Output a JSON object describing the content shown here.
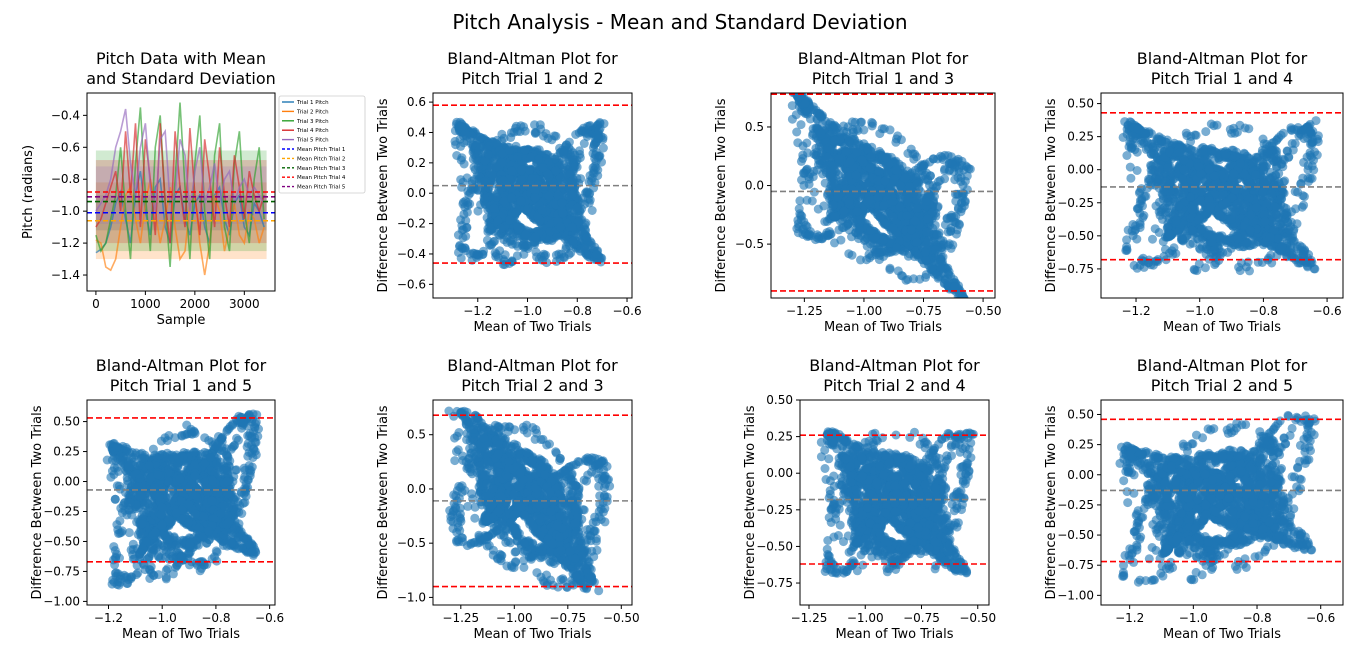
{
  "figure": {
    "title": "Pitch Analysis - Mean and Standard Deviation"
  },
  "colors": {
    "trial1": "#1f77b4",
    "trial2": "#ff7f0e",
    "trial3": "#2ca02c",
    "trial4": "#d62728",
    "trial5": "#9467bd",
    "mean1": "#0000ff",
    "mean2": "#ffa500",
    "mean3": "#006400",
    "mean4": "#ff0000",
    "mean5": "#800080",
    "scatter": "#1f77b4",
    "limit": "#ff0000",
    "meanDiff": "#808080"
  },
  "chart_data": [
    {
      "type": "line",
      "title": "Pitch Data with Mean\nand Standard Deviation",
      "xlabel": "Sample",
      "ylabel": "Pitch (radians)",
      "xlim": [
        -180,
        3620
      ],
      "ylim": [
        -1.5,
        -0.26
      ],
      "xticks": [
        0,
        1000,
        2000,
        3000
      ],
      "yticks": [
        -1.4,
        -1.2,
        -1.0,
        -0.8,
        -0.6,
        -0.4
      ],
      "grid": false,
      "legend_position": "outside-right",
      "legend": [
        "Trial 1 Pitch",
        "Trial 2 Pitch",
        "Trial 3 Pitch",
        "Trial 4 Pitch",
        "Trial 5 Pitch",
        "Mean Pitch Trial 1",
        "Mean Pitch Trial 2",
        "Mean Pitch Trial 3",
        "Mean Pitch Trial 4",
        "Mean Pitch Trial 5"
      ],
      "series": [
        {
          "name": "Trial 1 Pitch",
          "x": [
            0,
            100,
            200,
            300,
            400,
            500,
            600,
            700,
            800,
            900,
            1000,
            1100,
            1200,
            1300,
            1400,
            1500,
            1600,
            1700,
            1800,
            1900,
            2000,
            2100,
            2200,
            2300,
            2400,
            2500,
            2600,
            2700,
            2800,
            2900,
            3000,
            3100,
            3200,
            3300,
            3400
          ],
          "y": [
            -1.26,
            -1.24,
            -1.2,
            -1.1,
            -0.95,
            -0.88,
            -1.05,
            -1.2,
            -0.9,
            -0.75,
            -1.0,
            -1.15,
            -0.85,
            -0.8,
            -1.1,
            -1.2,
            -0.9,
            -0.85,
            -1.05,
            -1.15,
            -0.95,
            -0.9,
            -1.1,
            -1.2,
            -0.9,
            -0.85,
            -1.05,
            -1.15,
            -0.95,
            -0.9,
            -1.1,
            -1.15,
            -0.95,
            -1.0,
            -1.1
          ]
        },
        {
          "name": "Trial 2 Pitch",
          "x": [
            0,
            100,
            200,
            300,
            400,
            500,
            600,
            700,
            800,
            900,
            1000,
            1100,
            1200,
            1300,
            1400,
            1500,
            1600,
            1700,
            1800,
            1900,
            2000,
            2100,
            2200,
            2300,
            2400,
            2500,
            2600,
            2700,
            2800,
            2900,
            3000,
            3100,
            3200,
            3300,
            3400
          ],
          "y": [
            -1.18,
            -1.2,
            -1.35,
            -1.37,
            -1.3,
            -1.1,
            -0.9,
            -0.85,
            -1.05,
            -1.2,
            -0.95,
            -0.8,
            -1.0,
            -1.2,
            -1.05,
            -0.85,
            -1.1,
            -1.3,
            -1.25,
            -0.95,
            -0.9,
            -1.2,
            -1.4,
            -1.2,
            -0.9,
            -1.0,
            -1.25,
            -1.1,
            -0.95,
            -1.15,
            -1.2,
            -1.0,
            -1.05,
            -1.2,
            -1.1
          ]
        },
        {
          "name": "Trial 3 Pitch",
          "x": [
            0,
            100,
            200,
            300,
            400,
            500,
            600,
            700,
            800,
            900,
            1000,
            1100,
            1200,
            1300,
            1400,
            1500,
            1600,
            1700,
            1800,
            1900,
            2000,
            2100,
            2200,
            2300,
            2400,
            2500,
            2600,
            2700,
            2800,
            2900,
            3000,
            3100,
            3200,
            3300,
            3400
          ],
          "y": [
            -1.15,
            -1.25,
            -1.2,
            -1.05,
            -0.9,
            -0.6,
            -1.0,
            -1.3,
            -0.7,
            -0.35,
            -0.9,
            -1.25,
            -0.6,
            -0.4,
            -0.95,
            -1.35,
            -0.8,
            -0.32,
            -0.85,
            -1.3,
            -0.7,
            -0.4,
            -1.0,
            -1.3,
            -0.65,
            -0.45,
            -1.1,
            -1.25,
            -0.7,
            -0.5,
            -1.0,
            -1.2,
            -0.8,
            -0.6,
            -1.05
          ]
        },
        {
          "name": "Trial 4 Pitch",
          "x": [
            0,
            100,
            200,
            300,
            400,
            500,
            600,
            700,
            800,
            900,
            1000,
            1100,
            1200,
            1300,
            1400,
            1500,
            1600,
            1700,
            1800,
            1900,
            2000,
            2100,
            2200,
            2300,
            2400,
            2500,
            2600,
            2700,
            2800,
            2900,
            3000,
            3100,
            3200,
            3300,
            3400
          ],
          "y": [
            -1.1,
            -1.05,
            -0.95,
            -0.85,
            -0.75,
            -1.0,
            -0.5,
            -0.9,
            -0.45,
            -1.1,
            -0.55,
            -0.8,
            -1.15,
            -0.45,
            -0.95,
            -1.2,
            -0.5,
            -0.85,
            -1.1,
            -0.48,
            -0.9,
            -1.15,
            -0.55,
            -0.8,
            -1.1,
            -0.6,
            -0.9,
            -1.1,
            -0.65,
            -0.85,
            -1.05,
            -0.75,
            -0.9,
            -1.0,
            -0.9
          ]
        },
        {
          "name": "Trial 5 Pitch",
          "x": [
            0,
            100,
            200,
            300,
            400,
            500,
            600,
            700,
            800,
            900,
            1000,
            1100,
            1200,
            1300,
            1400,
            1500,
            1600,
            1700,
            1800,
            1900,
            2000,
            2100,
            2200,
            2300,
            2400,
            2500,
            2600,
            2700,
            2800,
            2900,
            3000,
            3100,
            3200,
            3300,
            3400
          ],
          "y": [
            -1.0,
            -0.95,
            -0.9,
            -0.8,
            -0.6,
            -0.5,
            -0.36,
            -0.7,
            -0.9,
            -0.6,
            -0.45,
            -0.85,
            -1.0,
            -0.55,
            -0.5,
            -0.95,
            -0.9,
            -0.55,
            -0.65,
            -1.0,
            -0.75,
            -0.6,
            -0.95,
            -0.85,
            -0.7,
            -0.95,
            -0.8,
            -0.75,
            -0.95,
            -0.85,
            -0.8,
            -0.9,
            -0.85,
            -0.9,
            -0.95
          ]
        }
      ],
      "means": [
        -1.01,
        -1.06,
        -0.94,
        -0.88,
        -0.91
      ],
      "std_bands": [
        {
          "lo": -1.12,
          "hi": -0.9
        },
        {
          "lo": -1.3,
          "hi": -0.82
        },
        {
          "lo": -1.25,
          "hi": -0.62
        },
        {
          "lo": -1.2,
          "hi": -0.68
        },
        {
          "lo": -1.08,
          "hi": -0.72
        }
      ]
    },
    {
      "type": "scatter",
      "title": "Bland-Altman Plot for\nPitch Trial 1 and 2",
      "xlabel": "Mean of Two Trials",
      "ylabel": "Difference Between Two Trials",
      "xlim": [
        -1.38,
        -0.58
      ],
      "ylim": [
        -0.69,
        0.66
      ],
      "xticks": [
        -1.2,
        -1.0,
        -0.8,
        -0.6
      ],
      "yticks": [
        -0.6,
        -0.4,
        -0.2,
        0.0,
        0.2,
        0.4,
        0.6
      ],
      "mean_diff": 0.05,
      "upper_loa": 0.58,
      "lower_loa": -0.46,
      "points_shape": {
        "cx": -0.99,
        "cy": 0.0,
        "rx": 0.34,
        "ry": 0.56,
        "skew": 0.0
      }
    },
    {
      "type": "scatter",
      "title": "Bland-Altman Plot for\nPitch Trial 1 and 3",
      "xlabel": "Mean of Two Trials",
      "ylabel": "Difference Between Two Trials",
      "xlim": [
        -1.39,
        -0.45
      ],
      "ylim": [
        -0.96,
        0.79
      ],
      "xticks": [
        -1.25,
        -1.0,
        -0.75,
        -0.5
      ],
      "yticks": [
        -0.5,
        0.0,
        0.5
      ],
      "mean_diff": -0.05,
      "upper_loa": 0.78,
      "lower_loa": -0.9,
      "points_shape": {
        "cx": -0.93,
        "cy": -0.1,
        "rx": 0.42,
        "ry": 0.75,
        "skew": -0.9
      }
    },
    {
      "type": "scatter",
      "title": "Bland-Altman Plot for\nPitch Trial 1 and 4",
      "xlabel": "Mean of Two Trials",
      "ylabel": "Difference Between Two Trials",
      "xlim": [
        -1.31,
        -0.55
      ],
      "ylim": [
        -0.97,
        0.58
      ],
      "xticks": [
        -1.2,
        -1.0,
        -0.8,
        -0.6
      ],
      "yticks": [
        -0.75,
        -0.5,
        -0.25,
        0.0,
        0.25,
        0.5
      ],
      "mean_diff": -0.13,
      "upper_loa": 0.43,
      "lower_loa": -0.68,
      "points_shape": {
        "cx": -0.93,
        "cy": -0.2,
        "rx": 0.35,
        "ry": 0.68,
        "skew": 0.0
      }
    },
    {
      "type": "scatter",
      "title": "Bland-Altman Plot for\nPitch Trial 1 and 5",
      "xlabel": "Mean of Two Trials",
      "ylabel": "Difference Between Two Trials",
      "xlim": [
        -1.28,
        -0.58
      ],
      "ylim": [
        -1.03,
        0.68
      ],
      "xticks": [
        -1.2,
        -1.0,
        -0.8,
        -0.6
      ],
      "yticks": [
        -1.0,
        -0.75,
        -0.5,
        -0.25,
        0.0,
        0.25,
        0.5
      ],
      "mean_diff": -0.07,
      "upper_loa": 0.53,
      "lower_loa": -0.67,
      "points_shape": {
        "cx": -0.92,
        "cy": -0.15,
        "rx": 0.32,
        "ry": 0.75,
        "skew": 0.6
      }
    },
    {
      "type": "scatter",
      "title": "Bland-Altman Plot for\nPitch Trial 2 and 3",
      "xlabel": "Mean of Two Trials",
      "ylabel": "Difference Between Two Trials",
      "xlim": [
        -1.38,
        -0.45
      ],
      "ylim": [
        -1.07,
        0.82
      ],
      "xticks": [
        -1.25,
        -1.0,
        -0.75,
        -0.5
      ],
      "yticks": [
        -1.0,
        -0.5,
        0.0,
        0.5
      ],
      "mean_diff": -0.11,
      "upper_loa": 0.68,
      "lower_loa": -0.9,
      "points_shape": {
        "cx": -0.93,
        "cy": -0.11,
        "rx": 0.43,
        "ry": 0.84,
        "skew": -1.0
      }
    },
    {
      "type": "scatter",
      "title": "Bland-Altman Plot for\nPitch Trial 2 and 4",
      "xlabel": "Mean of Two Trials",
      "ylabel": "Difference Between Two Trials",
      "xlim": [
        -1.29,
        -0.45
      ],
      "ylim": [
        -0.9,
        0.5
      ],
      "xticks": [
        -1.25,
        -1.0,
        -0.75,
        -0.5
      ],
      "yticks": [
        -0.75,
        -0.5,
        -0.25,
        0.0,
        0.25,
        0.5
      ],
      "mean_diff": -0.18,
      "upper_loa": 0.26,
      "lower_loa": -0.62,
      "points_shape": {
        "cx": -0.86,
        "cy": -0.2,
        "rx": 0.38,
        "ry": 0.64,
        "skew": 0.0
      }
    },
    {
      "type": "scatter",
      "title": "Bland-Altman Plot for\nPitch Trial 2 and 5",
      "xlabel": "Mean of Two Trials",
      "ylabel": "Difference Between Two Trials",
      "xlim": [
        -1.29,
        -0.53
      ],
      "ylim": [
        -1.08,
        0.62
      ],
      "xticks": [
        -1.2,
        -1.0,
        -0.8,
        -0.6
      ],
      "yticks": [
        -1.0,
        -0.75,
        -0.5,
        -0.25,
        0.0,
        0.25,
        0.5
      ],
      "mean_diff": -0.13,
      "upper_loa": 0.46,
      "lower_loa": -0.72,
      "points_shape": {
        "cx": -0.92,
        "cy": -0.2,
        "rx": 0.35,
        "ry": 0.75,
        "skew": 0.7
      }
    }
  ]
}
